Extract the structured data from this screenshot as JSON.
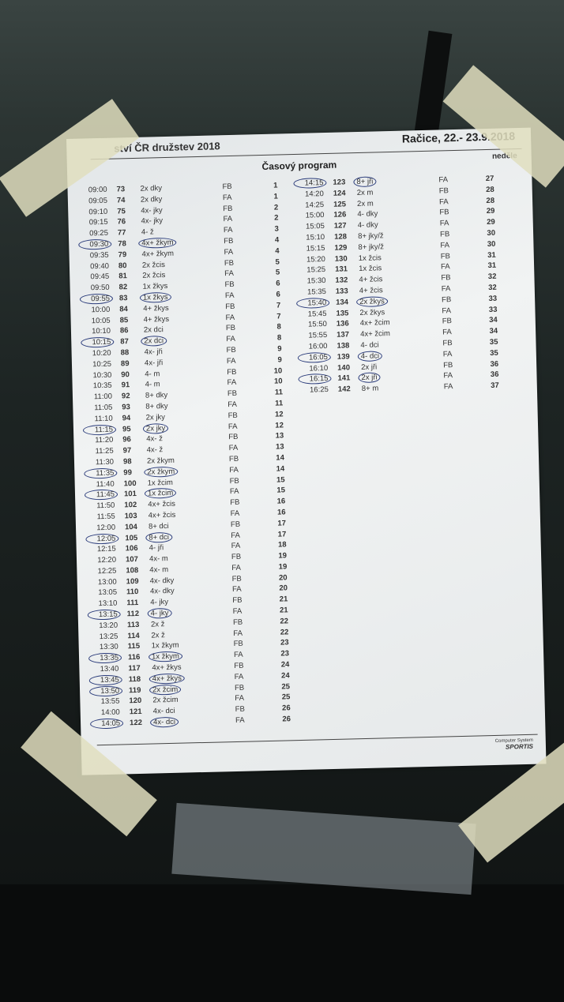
{
  "header": {
    "left": "ství ČR družstev 2018",
    "right": "Račice,  22.- 23.9.2018"
  },
  "title": "Časový program",
  "day": "neděle",
  "footer": {
    "line1": "Computer System",
    "brand": "SPORTIS"
  },
  "pen_color": "#2a3b7a",
  "left_rows": [
    {
      "time": "09:00",
      "nr": "73",
      "event": "2x dky",
      "course": "FB",
      "heat": "1"
    },
    {
      "time": "09:05",
      "nr": "74",
      "event": "2x dky",
      "course": "FA",
      "heat": "1"
    },
    {
      "time": "09:10",
      "nr": "75",
      "event": "4x- jky",
      "course": "FB",
      "heat": "2"
    },
    {
      "time": "09:15",
      "nr": "76",
      "event": "4x- jky",
      "course": "FA",
      "heat": "2"
    },
    {
      "time": "09:25",
      "nr": "77",
      "event": "4- ž",
      "course": "FA",
      "heat": "3"
    },
    {
      "time": "09:30",
      "nr": "78",
      "event": "4x+ žkym",
      "course": "FB",
      "heat": "4",
      "circled": true
    },
    {
      "time": "09:35",
      "nr": "79",
      "event": "4x+ žkym",
      "course": "FA",
      "heat": "4"
    },
    {
      "time": "09:40",
      "nr": "80",
      "event": "2x žcis",
      "course": "FB",
      "heat": "5"
    },
    {
      "time": "09:45",
      "nr": "81",
      "event": "2x žcis",
      "course": "FA",
      "heat": "5"
    },
    {
      "time": "09:50",
      "nr": "82",
      "event": "1x žkys",
      "course": "FB",
      "heat": "6"
    },
    {
      "time": "09:55",
      "nr": "83",
      "event": "1x žkys",
      "course": "FA",
      "heat": "6",
      "circled": true
    },
    {
      "time": "10:00",
      "nr": "84",
      "event": "4+ žkys",
      "course": "FB",
      "heat": "7"
    },
    {
      "time": "10:05",
      "nr": "85",
      "event": "4+ žkys",
      "course": "FA",
      "heat": "7"
    },
    {
      "time": "10:10",
      "nr": "86",
      "event": "2x dci",
      "course": "FB",
      "heat": "8"
    },
    {
      "time": "10:15",
      "nr": "87",
      "event": "2x dci",
      "course": "FA",
      "heat": "8",
      "circled": true
    },
    {
      "time": "10:20",
      "nr": "88",
      "event": "4x- jři",
      "course": "FB",
      "heat": "9"
    },
    {
      "time": "10:25",
      "nr": "89",
      "event": "4x- jři",
      "course": "FA",
      "heat": "9"
    },
    {
      "time": "10:30",
      "nr": "90",
      "event": "4- m",
      "course": "FB",
      "heat": "10"
    },
    {
      "time": "10:35",
      "nr": "91",
      "event": "4- m",
      "course": "FA",
      "heat": "10"
    },
    {
      "time": "11:00",
      "nr": "92",
      "event": "8+ dky",
      "course": "FB",
      "heat": "11"
    },
    {
      "time": "11:05",
      "nr": "93",
      "event": "8+ dky",
      "course": "FA",
      "heat": "11"
    },
    {
      "time": "11:10",
      "nr": "94",
      "event": "2x jky",
      "course": "FB",
      "heat": "12"
    },
    {
      "time": "11:15",
      "nr": "95",
      "event": "2x jky",
      "course": "FA",
      "heat": "12",
      "circled": true
    },
    {
      "time": "11:20",
      "nr": "96",
      "event": "4x- ž",
      "course": "FB",
      "heat": "13"
    },
    {
      "time": "11:25",
      "nr": "97",
      "event": "4x- ž",
      "course": "FA",
      "heat": "13"
    },
    {
      "time": "11:30",
      "nr": "98",
      "event": "2x žkym",
      "course": "FB",
      "heat": "14"
    },
    {
      "time": "11:35",
      "nr": "99",
      "event": "2x žkym",
      "course": "FA",
      "heat": "14",
      "circled": true
    },
    {
      "time": "11:40",
      "nr": "100",
      "event": "1x žcim",
      "course": "FB",
      "heat": "15"
    },
    {
      "time": "11:45",
      "nr": "101",
      "event": "1x žcim",
      "course": "FA",
      "heat": "15",
      "circled": true
    },
    {
      "time": "11:50",
      "nr": "102",
      "event": "4x+ žcis",
      "course": "FB",
      "heat": "16"
    },
    {
      "time": "11:55",
      "nr": "103",
      "event": "4x+ žcis",
      "course": "FA",
      "heat": "16"
    },
    {
      "time": "12:00",
      "nr": "104",
      "event": "8+ dci",
      "course": "FB",
      "heat": "17"
    },
    {
      "time": "12:05",
      "nr": "105",
      "event": "8+ dci",
      "course": "FA",
      "heat": "17",
      "circled": true
    },
    {
      "time": "12:15",
      "nr": "106",
      "event": "4- jři",
      "course": "FA",
      "heat": "18"
    },
    {
      "time": "12:20",
      "nr": "107",
      "event": "4x- m",
      "course": "FB",
      "heat": "19"
    },
    {
      "time": "12:25",
      "nr": "108",
      "event": "4x- m",
      "course": "FA",
      "heat": "19"
    },
    {
      "time": "13:00",
      "nr": "109",
      "event": "4x- dky",
      "course": "FB",
      "heat": "20"
    },
    {
      "time": "13:05",
      "nr": "110",
      "event": "4x- dky",
      "course": "FA",
      "heat": "20"
    },
    {
      "time": "13:10",
      "nr": "111",
      "event": "4- jky",
      "course": "FB",
      "heat": "21"
    },
    {
      "time": "13:15",
      "nr": "112",
      "event": "4- jky",
      "course": "FA",
      "heat": "21",
      "circled": true
    },
    {
      "time": "13:20",
      "nr": "113",
      "event": "2x ž",
      "course": "FB",
      "heat": "22"
    },
    {
      "time": "13:25",
      "nr": "114",
      "event": "2x ž",
      "course": "FA",
      "heat": "22"
    },
    {
      "time": "13:30",
      "nr": "115",
      "event": "1x žkym",
      "course": "FB",
      "heat": "23"
    },
    {
      "time": "13:35",
      "nr": "116",
      "event": "1x žkym",
      "course": "FA",
      "heat": "23",
      "circled": true
    },
    {
      "time": "13:40",
      "nr": "117",
      "event": "4x+ žkys",
      "course": "FB",
      "heat": "24"
    },
    {
      "time": "13:45",
      "nr": "118",
      "event": "4x+ žkys",
      "course": "FA",
      "heat": "24",
      "circled": true
    },
    {
      "time": "13:50",
      "nr": "119",
      "event": "2x žcim",
      "course": "FB",
      "heat": "25",
      "circled": true
    },
    {
      "time": "13:55",
      "nr": "120",
      "event": "2x žcim",
      "course": "FA",
      "heat": "25"
    },
    {
      "time": "14:00",
      "nr": "121",
      "event": "4x- dci",
      "course": "FB",
      "heat": "26"
    },
    {
      "time": "14:05",
      "nr": "122",
      "event": "4x- dci",
      "course": "FA",
      "heat": "26",
      "circled": true
    }
  ],
  "right_rows": [
    {
      "time": "14:15",
      "nr": "123",
      "event": "8+ jři",
      "course": "FA",
      "heat": "27",
      "circled": true
    },
    {
      "time": "14:20",
      "nr": "124",
      "event": "2x m",
      "course": "FB",
      "heat": "28"
    },
    {
      "time": "14:25",
      "nr": "125",
      "event": "2x m",
      "course": "FA",
      "heat": "28"
    },
    {
      "time": "15:00",
      "nr": "126",
      "event": "4- dky",
      "course": "FB",
      "heat": "29"
    },
    {
      "time": "15:05",
      "nr": "127",
      "event": "4- dky",
      "course": "FA",
      "heat": "29"
    },
    {
      "time": "15:10",
      "nr": "128",
      "event": "8+ jky/ž",
      "course": "FB",
      "heat": "30"
    },
    {
      "time": "15:15",
      "nr": "129",
      "event": "8+ jky/ž",
      "course": "FA",
      "heat": "30"
    },
    {
      "time": "15:20",
      "nr": "130",
      "event": "1x žcis",
      "course": "FB",
      "heat": "31"
    },
    {
      "time": "15:25",
      "nr": "131",
      "event": "1x žcis",
      "course": "FA",
      "heat": "31"
    },
    {
      "time": "15:30",
      "nr": "132",
      "event": "4+ žcis",
      "course": "FB",
      "heat": "32"
    },
    {
      "time": "15:35",
      "nr": "133",
      "event": "4+ žcis",
      "course": "FA",
      "heat": "32"
    },
    {
      "time": "15:40",
      "nr": "134",
      "event": "2x žkys",
      "course": "FB",
      "heat": "33",
      "circled": true
    },
    {
      "time": "15:45",
      "nr": "135",
      "event": "2x žkys",
      "course": "FA",
      "heat": "33"
    },
    {
      "time": "15:50",
      "nr": "136",
      "event": "4x+ žcim",
      "course": "FB",
      "heat": "34"
    },
    {
      "time": "15:55",
      "nr": "137",
      "event": "4x+ žcim",
      "course": "FA",
      "heat": "34"
    },
    {
      "time": "16:00",
      "nr": "138",
      "event": "4- dci",
      "course": "FB",
      "heat": "35"
    },
    {
      "time": "16:05",
      "nr": "139",
      "event": "4- dci",
      "course": "FA",
      "heat": "35",
      "circled": true
    },
    {
      "time": "16:10",
      "nr": "140",
      "event": "2x jři",
      "course": "FB",
      "heat": "36"
    },
    {
      "time": "16:15",
      "nr": "141",
      "event": "2x jři",
      "course": "FA",
      "heat": "36",
      "circled": true
    },
    {
      "time": "16:25",
      "nr": "142",
      "event": "8+ m",
      "course": "FA",
      "heat": "37"
    }
  ]
}
